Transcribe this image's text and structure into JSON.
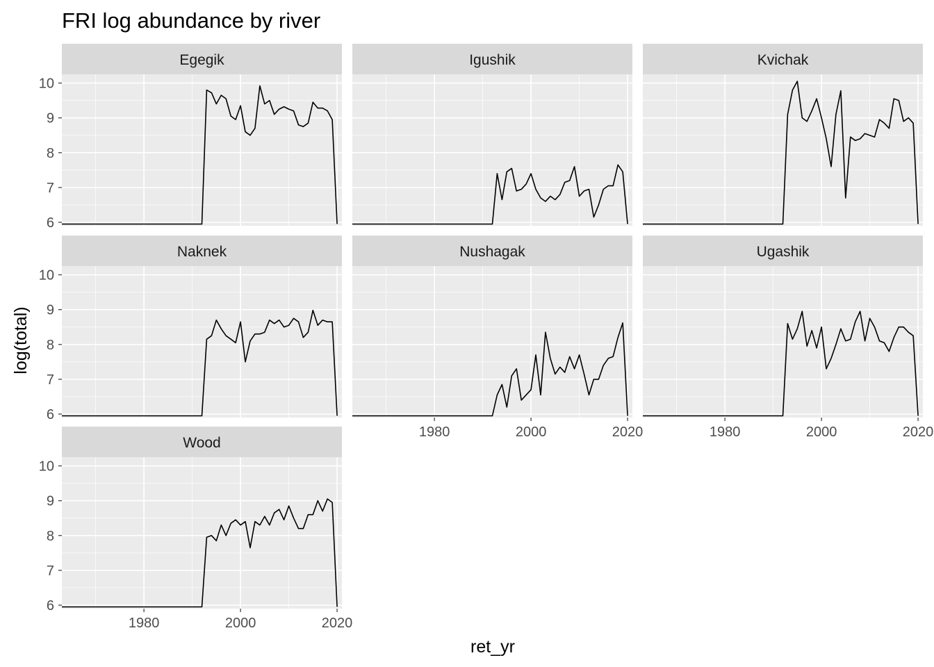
{
  "chart_data": {
    "type": "line",
    "title": "FRI log abundance by river",
    "xlabel": "ret_yr",
    "ylabel": "log(total)",
    "xlim": [
      1963,
      2021
    ],
    "ylim": [
      5.9,
      10.25
    ],
    "x_ticks": [
      1980,
      2000,
      2020
    ],
    "y_ticks": [
      6,
      7,
      8,
      9,
      10
    ],
    "grid": true,
    "line_color": "#000000",
    "panel_background": "#ebebeb",
    "strip_background": "#d9d9d9",
    "grid_color": "#ffffff",
    "facets": [
      "Egegik",
      "Igushik",
      "Kvichak",
      "Naknek",
      "Nushagak",
      "Ugashik",
      "Wood"
    ],
    "start_year": 1963,
    "end_year": 2020,
    "series": [
      {
        "name": "Egegik",
        "baseline_until": 1992,
        "baseline_value": 5.95,
        "points": [
          [
            1993,
            9.8
          ],
          [
            1994,
            9.72
          ],
          [
            1995,
            9.4
          ],
          [
            1996,
            9.65
          ],
          [
            1997,
            9.55
          ],
          [
            1998,
            9.05
          ],
          [
            1999,
            8.95
          ],
          [
            2000,
            9.35
          ],
          [
            2001,
            8.6
          ],
          [
            2002,
            8.5
          ],
          [
            2003,
            8.7
          ],
          [
            2004,
            9.92
          ],
          [
            2005,
            9.4
          ],
          [
            2006,
            9.5
          ],
          [
            2007,
            9.1
          ],
          [
            2008,
            9.25
          ],
          [
            2009,
            9.32
          ],
          [
            2010,
            9.25
          ],
          [
            2011,
            9.2
          ],
          [
            2012,
            8.8
          ],
          [
            2013,
            8.75
          ],
          [
            2014,
            8.85
          ],
          [
            2015,
            9.45
          ],
          [
            2016,
            9.28
          ],
          [
            2017,
            9.28
          ],
          [
            2018,
            9.2
          ],
          [
            2019,
            8.95
          ],
          [
            2020,
            5.95
          ]
        ]
      },
      {
        "name": "Igushik",
        "baseline_until": 1992,
        "baseline_value": 5.95,
        "points": [
          [
            1993,
            7.4
          ],
          [
            1994,
            6.65
          ],
          [
            1995,
            7.45
          ],
          [
            1996,
            7.55
          ],
          [
            1997,
            6.9
          ],
          [
            1998,
            6.95
          ],
          [
            1999,
            7.1
          ],
          [
            2000,
            7.4
          ],
          [
            2001,
            6.95
          ],
          [
            2002,
            6.7
          ],
          [
            2003,
            6.6
          ],
          [
            2004,
            6.75
          ],
          [
            2005,
            6.65
          ],
          [
            2006,
            6.8
          ],
          [
            2007,
            7.15
          ],
          [
            2008,
            7.2
          ],
          [
            2009,
            7.6
          ],
          [
            2010,
            6.75
          ],
          [
            2011,
            6.9
          ],
          [
            2012,
            6.95
          ],
          [
            2013,
            6.15
          ],
          [
            2014,
            6.5
          ],
          [
            2015,
            6.95
          ],
          [
            2016,
            7.05
          ],
          [
            2017,
            7.05
          ],
          [
            2018,
            7.65
          ],
          [
            2019,
            7.45
          ],
          [
            2020,
            5.95
          ]
        ]
      },
      {
        "name": "Kvichak",
        "baseline_until": 1992,
        "baseline_value": 5.95,
        "points": [
          [
            1993,
            9.1
          ],
          [
            1994,
            9.8
          ],
          [
            1995,
            10.05
          ],
          [
            1996,
            9.0
          ],
          [
            1997,
            8.9
          ],
          [
            1998,
            9.2
          ],
          [
            1999,
            9.55
          ],
          [
            2000,
            9.0
          ],
          [
            2001,
            8.4
          ],
          [
            2002,
            7.6
          ],
          [
            2003,
            9.1
          ],
          [
            2004,
            9.78
          ],
          [
            2005,
            6.7
          ],
          [
            2006,
            8.45
          ],
          [
            2007,
            8.35
          ],
          [
            2008,
            8.4
          ],
          [
            2009,
            8.55
          ],
          [
            2010,
            8.5
          ],
          [
            2011,
            8.45
          ],
          [
            2012,
            8.95
          ],
          [
            2013,
            8.85
          ],
          [
            2014,
            8.7
          ],
          [
            2015,
            9.55
          ],
          [
            2016,
            9.5
          ],
          [
            2017,
            8.9
          ],
          [
            2018,
            9.0
          ],
          [
            2019,
            8.85
          ],
          [
            2020,
            5.95
          ]
        ]
      },
      {
        "name": "Naknek",
        "baseline_until": 1992,
        "baseline_value": 5.95,
        "points": [
          [
            1993,
            8.15
          ],
          [
            1994,
            8.25
          ],
          [
            1995,
            8.7
          ],
          [
            1996,
            8.45
          ],
          [
            1997,
            8.25
          ],
          [
            1998,
            8.15
          ],
          [
            1999,
            8.05
          ],
          [
            2000,
            8.65
          ],
          [
            2001,
            7.5
          ],
          [
            2002,
            8.1
          ],
          [
            2003,
            8.3
          ],
          [
            2004,
            8.3
          ],
          [
            2005,
            8.35
          ],
          [
            2006,
            8.7
          ],
          [
            2007,
            8.6
          ],
          [
            2008,
            8.7
          ],
          [
            2009,
            8.5
          ],
          [
            2010,
            8.55
          ],
          [
            2011,
            8.75
          ],
          [
            2012,
            8.65
          ],
          [
            2013,
            8.2
          ],
          [
            2014,
            8.35
          ],
          [
            2015,
            8.98
          ],
          [
            2016,
            8.55
          ],
          [
            2017,
            8.7
          ],
          [
            2018,
            8.65
          ],
          [
            2019,
            8.65
          ],
          [
            2020,
            5.95
          ]
        ]
      },
      {
        "name": "Nushagak",
        "baseline_until": 1992,
        "baseline_value": 5.95,
        "points": [
          [
            1993,
            6.55
          ],
          [
            1994,
            6.85
          ],
          [
            1995,
            6.2
          ],
          [
            1996,
            7.1
          ],
          [
            1997,
            7.3
          ],
          [
            1998,
            6.4
          ],
          [
            1999,
            6.55
          ],
          [
            2000,
            6.7
          ],
          [
            2001,
            7.7
          ],
          [
            2002,
            6.55
          ],
          [
            2003,
            8.35
          ],
          [
            2004,
            7.6
          ],
          [
            2005,
            7.15
          ],
          [
            2006,
            7.35
          ],
          [
            2007,
            7.2
          ],
          [
            2008,
            7.65
          ],
          [
            2009,
            7.3
          ],
          [
            2010,
            7.7
          ],
          [
            2011,
            7.15
          ],
          [
            2012,
            6.55
          ],
          [
            2013,
            7.0
          ],
          [
            2014,
            7.0
          ],
          [
            2015,
            7.4
          ],
          [
            2016,
            7.6
          ],
          [
            2017,
            7.65
          ],
          [
            2018,
            8.2
          ],
          [
            2019,
            8.62
          ],
          [
            2020,
            5.95
          ]
        ]
      },
      {
        "name": "Ugashik",
        "baseline_until": 1992,
        "baseline_value": 5.95,
        "points": [
          [
            1993,
            8.6
          ],
          [
            1994,
            8.15
          ],
          [
            1995,
            8.45
          ],
          [
            1996,
            8.95
          ],
          [
            1997,
            7.95
          ],
          [
            1998,
            8.4
          ],
          [
            1999,
            7.9
          ],
          [
            2000,
            8.5
          ],
          [
            2001,
            7.3
          ],
          [
            2002,
            7.6
          ],
          [
            2003,
            8.0
          ],
          [
            2004,
            8.45
          ],
          [
            2005,
            8.1
          ],
          [
            2006,
            8.15
          ],
          [
            2007,
            8.65
          ],
          [
            2008,
            8.95
          ],
          [
            2009,
            8.1
          ],
          [
            2010,
            8.75
          ],
          [
            2011,
            8.5
          ],
          [
            2012,
            8.1
          ],
          [
            2013,
            8.05
          ],
          [
            2014,
            7.8
          ],
          [
            2015,
            8.2
          ],
          [
            2016,
            8.5
          ],
          [
            2017,
            8.5
          ],
          [
            2018,
            8.35
          ],
          [
            2019,
            8.25
          ],
          [
            2020,
            5.95
          ]
        ]
      },
      {
        "name": "Wood",
        "baseline_until": 1992,
        "baseline_value": 5.95,
        "points": [
          [
            1993,
            7.95
          ],
          [
            1994,
            8.0
          ],
          [
            1995,
            7.85
          ],
          [
            1996,
            8.3
          ],
          [
            1997,
            8.0
          ],
          [
            1998,
            8.35
          ],
          [
            1999,
            8.45
          ],
          [
            2000,
            8.3
          ],
          [
            2001,
            8.4
          ],
          [
            2002,
            7.65
          ],
          [
            2003,
            8.4
          ],
          [
            2004,
            8.3
          ],
          [
            2005,
            8.55
          ],
          [
            2006,
            8.3
          ],
          [
            2007,
            8.65
          ],
          [
            2008,
            8.75
          ],
          [
            2009,
            8.45
          ],
          [
            2010,
            8.85
          ],
          [
            2011,
            8.5
          ],
          [
            2012,
            8.2
          ],
          [
            2013,
            8.2
          ],
          [
            2014,
            8.6
          ],
          [
            2015,
            8.6
          ],
          [
            2016,
            9.0
          ],
          [
            2017,
            8.7
          ],
          [
            2018,
            9.05
          ],
          [
            2019,
            8.95
          ],
          [
            2020,
            5.95
          ]
        ]
      }
    ]
  }
}
